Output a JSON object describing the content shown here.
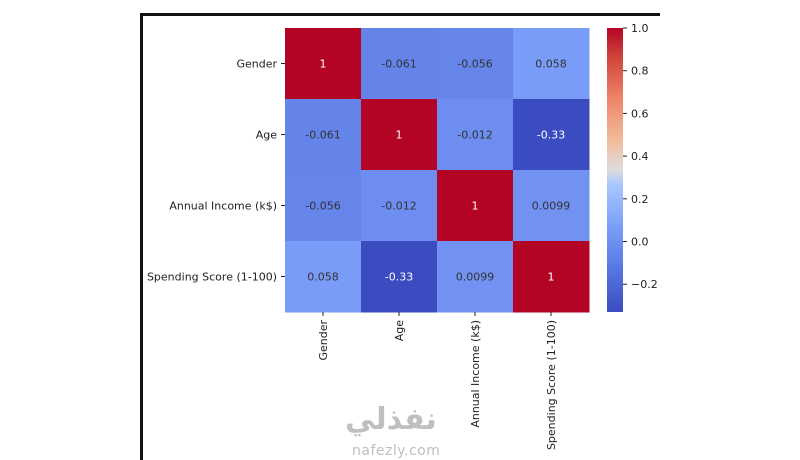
{
  "chart_data": {
    "type": "heatmap",
    "title": "",
    "variables": [
      "Gender",
      "Age",
      "Annual Income (k$)",
      "Spending Score (1-100)"
    ],
    "matrix": [
      [
        1,
        -0.061,
        -0.056,
        0.058
      ],
      [
        -0.061,
        1,
        -0.012,
        -0.33
      ],
      [
        -0.056,
        -0.012,
        1,
        0.0099
      ],
      [
        0.058,
        -0.33,
        0.0099,
        1
      ]
    ],
    "cell_labels": [
      [
        "1",
        "-0.061",
        "-0.056",
        "0.058"
      ],
      [
        "-0.061",
        "1",
        "-0.012",
        "-0.33"
      ],
      [
        "-0.056",
        "-0.012",
        "1",
        "0.0099"
      ],
      [
        "0.058",
        "-0.33",
        "0.0099",
        "1"
      ]
    ],
    "colormap": "coolwarm",
    "colorbar": {
      "vmin": -0.33,
      "vmax": 1.0,
      "ticks": [
        1.0,
        0.8,
        0.6,
        0.4,
        0.2,
        0.0,
        -0.2
      ],
      "tick_labels": [
        "1.0",
        "0.8",
        "0.6",
        "0.4",
        "0.2",
        "0.0",
        "−0.2"
      ]
    },
    "colors": {
      "low": "#3b4cc0",
      "mid": "#dddddd",
      "high": "#b40426"
    }
  },
  "watermark": {
    "arabic": "نفذلي",
    "latin": "nafezly.com"
  }
}
